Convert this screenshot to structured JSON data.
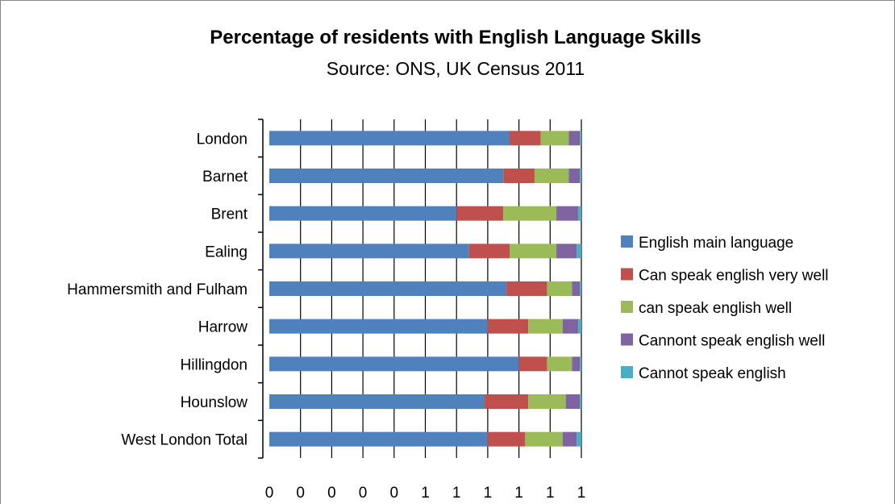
{
  "chart_data": {
    "type": "bar",
    "orientation": "horizontal",
    "stacked": true,
    "title": "Percentage of residents with English Language Skills",
    "subtitle": "Source: ONS, UK Census 2011",
    "categories": [
      "London",
      "Barnet",
      "Brent",
      "Ealing",
      "Hammersmith and Fulham",
      "Harrow",
      "Hillingdon",
      "Hounslow",
      "West London Total"
    ],
    "series": [
      {
        "name": "English main language",
        "color": "#4f81bd",
        "values": [
          0.77,
          0.75,
          0.6,
          0.64,
          0.76,
          0.7,
          0.8,
          0.69,
          0.7
        ]
      },
      {
        "name": "Can speak english very well",
        "color": "#c0504d",
        "values": [
          0.1,
          0.1,
          0.15,
          0.13,
          0.13,
          0.13,
          0.09,
          0.14,
          0.12
        ]
      },
      {
        "name": "can speak english well",
        "color": "#9bbb59",
        "values": [
          0.09,
          0.11,
          0.17,
          0.15,
          0.08,
          0.11,
          0.08,
          0.12,
          0.12
        ]
      },
      {
        "name": "Cannont speak english well",
        "color": "#8064a2",
        "values": [
          0.035,
          0.035,
          0.07,
          0.065,
          0.025,
          0.05,
          0.025,
          0.045,
          0.045
        ]
      },
      {
        "name": "Cannot speak english",
        "color": "#4bacc6",
        "values": [
          0.005,
          0.005,
          0.01,
          0.015,
          0.005,
          0.01,
          0.005,
          0.005,
          0.015
        ]
      }
    ],
    "xlim": [
      0,
      1
    ],
    "xticks": [
      0,
      0.1,
      0.2,
      0.3,
      0.4,
      0.5,
      0.6,
      0.7,
      0.8,
      0.9,
      1.0
    ],
    "xtick_labels": [
      "0",
      "0",
      "0",
      "0",
      "0",
      "1",
      "1",
      "1",
      "1",
      "1",
      "1"
    ],
    "grid": "vertical",
    "legend_position": "right"
  }
}
